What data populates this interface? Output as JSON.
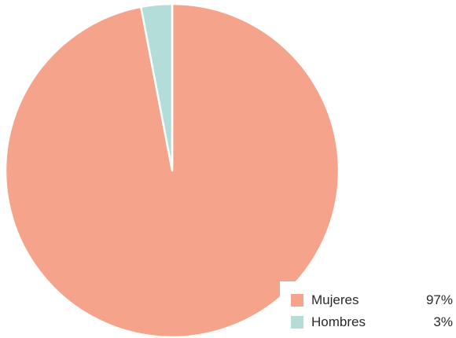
{
  "chart_data": {
    "type": "pie",
    "title": "",
    "slices": [
      {
        "label": "Mujeres",
        "value": 97,
        "display": "97%",
        "color": "#f5a38a"
      },
      {
        "label": "Hombres",
        "value": 3,
        "display": "3%",
        "color": "#b3ddd8"
      }
    ],
    "legend_position": "bottom-right",
    "start_angle_deg": 0,
    "direction": "clockwise"
  }
}
